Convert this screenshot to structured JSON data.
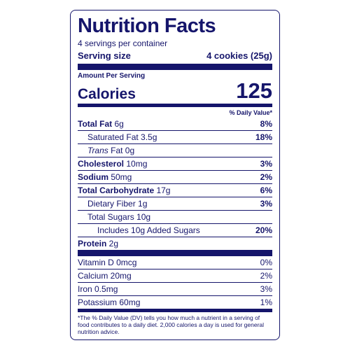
{
  "colors": {
    "ink": "#15156b",
    "bg": "#ffffff"
  },
  "title": "Nutrition Facts",
  "servings_per_container": "4 servings per container",
  "serving_size_label": "Serving size",
  "serving_size_value": "4 cookies (25g)",
  "amount_per_serving": "Amount Per Serving",
  "calories_label": "Calories",
  "calories_value": "125",
  "dv_header": "% Daily Value*",
  "nutrients_main": [
    {
      "name": "Total Fat",
      "amount": "6g",
      "dv": "8%",
      "bold": true,
      "indent": 0
    },
    {
      "name": "Saturated Fat",
      "amount": "3.5g",
      "dv": "18%",
      "bold": false,
      "indent": 1
    },
    {
      "name_html": "Trans",
      "suffix": " Fat",
      "amount": "0g",
      "dv": "",
      "bold": false,
      "indent": 1,
      "italic_name": true
    },
    {
      "name": "Cholesterol",
      "amount": "10mg",
      "dv": "3%",
      "bold": true,
      "indent": 0
    },
    {
      "name": "Sodium",
      "amount": "50mg",
      "dv": "2%",
      "bold": true,
      "indent": 0
    },
    {
      "name": "Total Carbohydrate",
      "amount": "17g",
      "dv": "6%",
      "bold": true,
      "indent": 0
    },
    {
      "name": "Dietary Fiber",
      "amount": "1g",
      "dv": "3%",
      "bold": false,
      "indent": 1
    },
    {
      "name": "Total Sugars",
      "amount": "10g",
      "dv": "",
      "bold": false,
      "indent": 1
    },
    {
      "name": "Includes 10g Added Sugars",
      "amount": "",
      "dv": "20%",
      "bold": false,
      "indent": 2
    },
    {
      "name": "Protein",
      "amount": "2g",
      "dv": "",
      "bold": true,
      "indent": 0
    }
  ],
  "nutrients_vit": [
    {
      "name": "Vitamin D",
      "amount": "0mcg",
      "dv": "0%"
    },
    {
      "name": "Calcium",
      "amount": "20mg",
      "dv": "2%"
    },
    {
      "name": "Iron",
      "amount": "0.5mg",
      "dv": "3%"
    },
    {
      "name": "Potassium",
      "amount": "60mg",
      "dv": "1%"
    }
  ],
  "footnote": "*The % Daily Value (DV) tells you how much a nutrient in a serving of food contributes to a daily diet. 2,000 calories a day is used for general nutrition advice."
}
